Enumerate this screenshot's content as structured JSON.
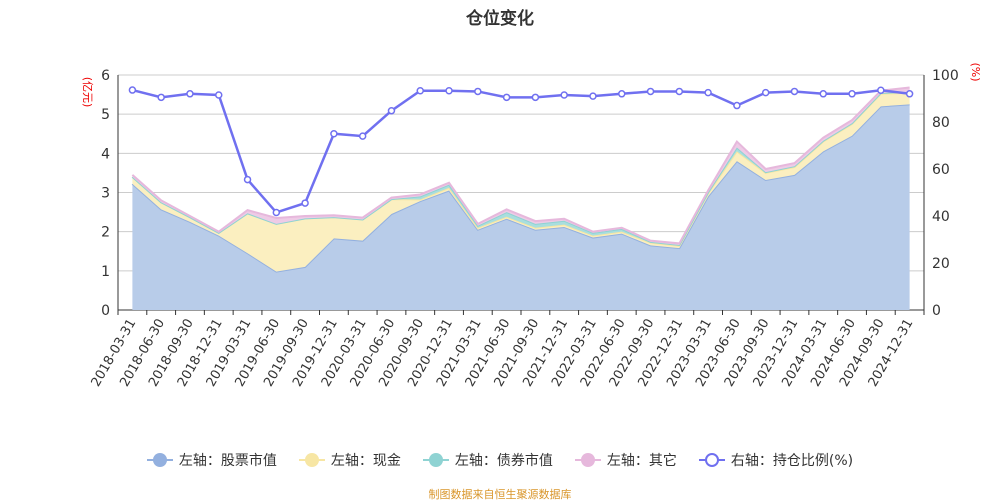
{
  "chart_data": {
    "type": "area",
    "title": "仓位变化",
    "ylabel_left": "(亿元)",
    "ylabel_right": "(%)",
    "ylim_left": [
      0,
      6
    ],
    "ylim_right": [
      0,
      100
    ],
    "yticks_left": [
      0,
      1,
      2,
      3,
      4,
      5,
      6
    ],
    "yticks_right": [
      0,
      20,
      40,
      60,
      80,
      100
    ],
    "grid": true,
    "legend_position": "bottom",
    "categories": [
      "2018-03-31",
      "2018-06-30",
      "2018-09-30",
      "2018-12-31",
      "2019-03-31",
      "2019-06-30",
      "2019-09-30",
      "2019-12-31",
      "2020-03-31",
      "2020-06-30",
      "2020-09-30",
      "2020-12-31",
      "2021-03-31",
      "2021-06-30",
      "2021-09-30",
      "2021-12-31",
      "2022-03-31",
      "2022-06-30",
      "2022-09-30",
      "2022-12-31",
      "2023-03-31",
      "2023-06-30",
      "2023-09-30",
      "2023-12-31",
      "2024-03-31",
      "2024-06-30",
      "2024-09-30",
      "2024-12-31"
    ],
    "series": [
      {
        "name": "左轴：股票市值",
        "axis": "left",
        "stacked": true,
        "color": "#93b0df",
        "fill": "#b8cce9",
        "values": [
          3.22,
          2.57,
          2.25,
          1.9,
          1.45,
          0.98,
          1.1,
          1.83,
          1.77,
          2.45,
          2.78,
          3.05,
          2.05,
          2.33,
          2.05,
          2.12,
          1.85,
          1.95,
          1.65,
          1.58,
          2.9,
          3.8,
          3.32,
          3.45,
          4.05,
          4.45,
          5.2,
          5.25
        ]
      },
      {
        "name": "左轴：现金",
        "axis": "left",
        "stacked": true,
        "color": "#f7e6a4",
        "fill": "#fbefc0",
        "values": [
          0.18,
          0.18,
          0.12,
          0.07,
          1.02,
          1.22,
          1.24,
          0.54,
          0.54,
          0.38,
          0.04,
          0.07,
          0.05,
          0.05,
          0.05,
          0.06,
          0.05,
          0.05,
          0.07,
          0.06,
          0.08,
          0.25,
          0.18,
          0.2,
          0.25,
          0.3,
          0.32,
          0.3
        ]
      },
      {
        "name": "左轴：债券市值",
        "axis": "left",
        "stacked": true,
        "color": "#8fd3d3",
        "fill": "#a9dede",
        "values": [
          0,
          0,
          0,
          0,
          0,
          0,
          0,
          0,
          0,
          0,
          0.08,
          0.08,
          0.05,
          0.12,
          0.1,
          0.1,
          0.07,
          0.07,
          0.02,
          0.02,
          0.02,
          0.1,
          0.02,
          0.02,
          0.02,
          0.02,
          0.02,
          0.02
        ]
      },
      {
        "name": "左轴：其它",
        "axis": "left",
        "stacked": true,
        "color": "#e6b8dc",
        "fill": "#eecbe6",
        "values": [
          0.05,
          0.05,
          0.03,
          0.03,
          0.08,
          0.15,
          0.06,
          0.05,
          0.05,
          0.04,
          0.05,
          0.05,
          0.05,
          0.07,
          0.07,
          0.05,
          0.03,
          0.03,
          0.03,
          0.04,
          0.05,
          0.15,
          0.08,
          0.08,
          0.08,
          0.08,
          0.06,
          0.11
        ]
      },
      {
        "name": "右轴：持仓比例(%)",
        "axis": "right",
        "type": "line",
        "color": "#7070f0",
        "values": [
          93.6,
          90.5,
          92,
          91.5,
          55.5,
          41.5,
          45.5,
          75,
          74,
          84.8,
          93.3,
          93.3,
          93,
          90.5,
          90.5,
          91.5,
          91,
          92,
          93,
          93,
          92.5,
          87,
          92.5,
          93,
          92,
          92,
          93.5,
          92
        ]
      }
    ]
  },
  "footer": "制图数据来自恒生聚源数据库"
}
